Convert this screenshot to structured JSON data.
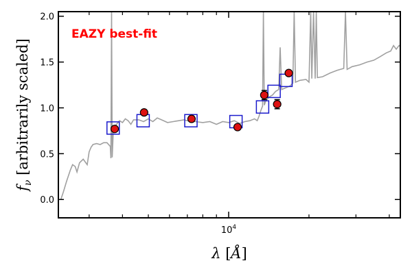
{
  "chart_data": {
    "type": "scatter",
    "title": "",
    "annotation": "EAZY best-fit",
    "xlabel": "λ [Å]",
    "ylabel": "fν [arbitrarily scaled]",
    "x_scale": "log",
    "xlim": [
      2300,
      44000
    ],
    "ylim": [
      -0.2,
      2.05
    ],
    "xticks": [
      {
        "value": 10000,
        "label": "10^4"
      }
    ],
    "yticks": [
      {
        "value": 0.0,
        "label": "0.0"
      },
      {
        "value": 0.5,
        "label": "0.5"
      },
      {
        "value": 1.0,
        "label": "1.0"
      },
      {
        "value": 1.5,
        "label": "1.5"
      },
      {
        "value": 2.0,
        "label": "2.0"
      }
    ],
    "grid": false,
    "colors": {
      "template": "#a0a0a0",
      "model_photometry": "#1a1acc",
      "observed": "#dd1111",
      "annotation": "#ff0000"
    },
    "series": [
      {
        "kind": "line",
        "points": [
          [
            2350,
            0.0
          ],
          [
            2400,
            0.08
          ],
          [
            2470,
            0.2
          ],
          [
            2550,
            0.32
          ],
          [
            2600,
            0.38
          ],
          [
            2660,
            0.36
          ],
          [
            2700,
            0.3
          ],
          [
            2760,
            0.4
          ],
          [
            2850,
            0.44
          ],
          [
            2950,
            0.38
          ],
          [
            3000,
            0.52
          ],
          [
            3050,
            0.57
          ],
          [
            3100,
            0.6
          ],
          [
            3200,
            0.61
          ],
          [
            3300,
            0.6
          ],
          [
            3400,
            0.62
          ],
          [
            3500,
            0.62
          ],
          [
            3600,
            0.58
          ],
          [
            3620,
            0.45
          ],
          [
            3640,
            2.05
          ],
          [
            3660,
            0.46
          ],
          [
            3700,
            0.78
          ],
          [
            3800,
            0.82
          ],
          [
            3900,
            0.86
          ],
          [
            4000,
            0.84
          ],
          [
            4100,
            0.88
          ],
          [
            4200,
            0.86
          ],
          [
            4300,
            0.82
          ],
          [
            4400,
            0.87
          ],
          [
            4600,
            0.87
          ],
          [
            4800,
            0.85
          ],
          [
            5000,
            0.88
          ],
          [
            5200,
            0.85
          ],
          [
            5400,
            0.89
          ],
          [
            5600,
            0.87
          ],
          [
            5900,
            0.84
          ],
          [
            6200,
            0.85
          ],
          [
            6500,
            0.86
          ],
          [
            6800,
            0.87
          ],
          [
            7000,
            0.86
          ],
          [
            7500,
            0.85
          ],
          [
            8000,
            0.84
          ],
          [
            8500,
            0.85
          ],
          [
            9000,
            0.82
          ],
          [
            9500,
            0.85
          ],
          [
            10000,
            0.84
          ],
          [
            10500,
            0.86
          ],
          [
            11000,
            0.83
          ],
          [
            11500,
            0.85
          ],
          [
            12000,
            0.86
          ],
          [
            12500,
            0.88
          ],
          [
            12800,
            0.86
          ],
          [
            13000,
            0.91
          ],
          [
            13200,
            0.97
          ],
          [
            13400,
            1.02
          ],
          [
            13500,
            2.05
          ],
          [
            13600,
            1.03
          ],
          [
            13800,
            1.08
          ],
          [
            14200,
            1.12
          ],
          [
            14600,
            1.14
          ],
          [
            15000,
            1.18
          ],
          [
            15400,
            1.2
          ],
          [
            15600,
            1.66
          ],
          [
            15800,
            1.2
          ],
          [
            16400,
            1.22
          ],
          [
            17000,
            1.24
          ],
          [
            17400,
            1.27
          ],
          [
            17600,
            2.05
          ],
          [
            17800,
            1.28
          ],
          [
            18500,
            1.3
          ],
          [
            19500,
            1.31
          ],
          [
            20000,
            1.28
          ],
          [
            20300,
            2.05
          ],
          [
            20500,
            1.32
          ],
          [
            20800,
            2.05
          ],
          [
            21100,
            1.32
          ],
          [
            21300,
            2.05
          ],
          [
            21500,
            1.33
          ],
          [
            22500,
            1.34
          ],
          [
            24000,
            1.38
          ],
          [
            25500,
            1.41
          ],
          [
            27000,
            1.43
          ],
          [
            27400,
            2.05
          ],
          [
            27800,
            1.42
          ],
          [
            29000,
            1.45
          ],
          [
            31000,
            1.47
          ],
          [
            33000,
            1.5
          ],
          [
            35000,
            1.52
          ],
          [
            37000,
            1.56
          ],
          [
            39000,
            1.6
          ],
          [
            40500,
            1.62
          ],
          [
            41500,
            1.68
          ],
          [
            42500,
            1.64
          ],
          [
            43500,
            1.68
          ],
          [
            44000,
            1.67
          ]
        ]
      },
      {
        "kind": "markers",
        "marker": "open-square",
        "points": [
          [
            3690,
            0.78
          ],
          [
            4780,
            0.86
          ],
          [
            7220,
            0.86
          ],
          [
            10650,
            0.85
          ],
          [
            13400,
            1.01
          ],
          [
            14800,
            1.18
          ],
          [
            16400,
            1.3
          ]
        ]
      },
      {
        "kind": "markers",
        "marker": "filled-circle",
        "points": [
          {
            "x": 3740,
            "y": 0.77,
            "err": 0.02
          },
          {
            "x": 4820,
            "y": 0.95,
            "err": 0.02
          },
          {
            "x": 7260,
            "y": 0.88,
            "err": 0.02
          },
          {
            "x": 10800,
            "y": 0.79,
            "err": 0.02
          },
          {
            "x": 13600,
            "y": 1.14,
            "err": 0.05
          },
          {
            "x": 15200,
            "y": 1.04,
            "err": 0.05
          },
          {
            "x": 16800,
            "y": 1.38,
            "err": 0.02
          }
        ]
      }
    ]
  }
}
